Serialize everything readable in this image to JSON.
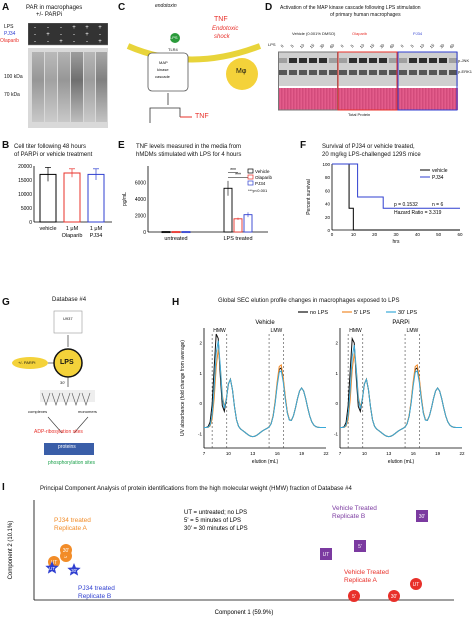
{
  "panels": {
    "A": {
      "letter": "A",
      "title_line1": "PAR in macrophages",
      "title_line2": "+/- PARPi",
      "row_lps": "LPS",
      "row_pj34": "PJ34",
      "row_olaparib": "Olaparib",
      "signs_lps": [
        "-",
        "-",
        "-",
        "+",
        "+",
        "+"
      ],
      "signs_pj34": [
        "-",
        "+",
        "-",
        "-",
        "+",
        "-"
      ],
      "signs_olap": [
        "-",
        "-",
        "+",
        "-",
        "-",
        "+"
      ],
      "mw1": "100 kDa",
      "mw2": "70 kDa"
    },
    "B": {
      "letter": "B",
      "title_line1": "Cell titer following 48 hours",
      "title_line2": "of PARPi or vehicle treatment",
      "yticks": [
        "20000",
        "15000",
        "10000",
        "5000",
        "0"
      ],
      "xlab1": "vehicle",
      "xlab2a": "1 μM",
      "xlab2b": "Olaparib",
      "xlab3a": "1 μM",
      "xlab3b": "PJ34",
      "chart_data": {
        "type": "bar",
        "categories": [
          "vehicle",
          "1 μM Olaparib",
          "1 μM PJ34"
        ],
        "values": [
          17000,
          17500,
          17000
        ],
        "errors": [
          2500,
          1500,
          2000
        ],
        "ylim": [
          0,
          20000
        ],
        "colors": [
          "#000000",
          "#e8302a",
          "#2f3fd0"
        ]
      }
    },
    "C": {
      "letter": "C",
      "endotoxin": "endotoxin",
      "lps": "LPS",
      "tlr4": "TLR4",
      "tnf_shock1": "TNF",
      "tnf_shock2": "Endotoxic",
      "tnf_shock3": "shock",
      "map1": "MAP",
      "map2": "kinase",
      "map3": "cascade",
      "mphi": "Mφ",
      "tnf": "TNF"
    },
    "D": {
      "letter": "D",
      "title": "Activation of the MAP kinase cascade following LPS stimulation",
      "subtitle": "of primary human macrophages",
      "vehicle": "Vehicle (0.001% DMSO)",
      "olaparib": "Olaparib",
      "pj34": "PJ34",
      "lps": "LPS",
      "timepoints": [
        "0",
        "5",
        "10",
        "15",
        "30",
        "60",
        "0",
        "5",
        "10",
        "15",
        "30",
        "60",
        "0",
        "5",
        "10",
        "15",
        "30",
        "60"
      ],
      "pjnk": "p-JNK",
      "perk": "p-ERK1",
      "total": "Total Protein"
    },
    "E": {
      "letter": "E",
      "title1": "TNF levels measured in the media from",
      "title2": "hMDMs stimulated with LPS for 4 hours",
      "ylabel": "pg/mL",
      "yticks": [
        "6000",
        "4000",
        "2000",
        "0"
      ],
      "legend": [
        "Vehicle",
        "Olaparib",
        "PJ34"
      ],
      "sig": "***p<0.001",
      "stars": "***",
      "xlab1": "untreated",
      "xlab2": "LPS treated",
      "chart_data": {
        "type": "bar",
        "categories": [
          "untreated",
          "LPS treated"
        ],
        "series": [
          {
            "name": "Vehicle",
            "values": [
              50,
              5300
            ],
            "errors": [
              20,
              900
            ]
          },
          {
            "name": "Olaparib",
            "values": [
              50,
              1600
            ],
            "errors": [
              20,
              150
            ]
          },
          {
            "name": "PJ34",
            "values": [
              50,
              2100
            ],
            "errors": [
              20,
              300
            ]
          }
        ],
        "ylim": [
          0,
          8000
        ],
        "colors": [
          "#000000",
          "#e8302a",
          "#2f3fd0"
        ]
      }
    },
    "F": {
      "letter": "F",
      "title1": "Survival of PJ34 or vehicle treated,",
      "title2": "20 mg/kg LPS-challenged 129S mice",
      "ylabel": "Percent survival",
      "xlabel": "hrs",
      "legend": [
        "vehicle",
        "PJ34"
      ],
      "stats1": "p = 0.1532",
      "stats2": "n = 6",
      "stats3": "Hazard Ratio = 3.319",
      "yticks": [
        "100",
        "80",
        "60",
        "40",
        "20",
        "0"
      ],
      "xticks": [
        "0",
        "10",
        "20",
        "30",
        "40",
        "50",
        "60"
      ],
      "chart_data": {
        "type": "line",
        "series": [
          {
            "name": "vehicle",
            "x": [
              0,
              8,
              8,
              10,
              10,
              60
            ],
            "y": [
              100,
              100,
              33,
              33,
              0,
              0
            ]
          },
          {
            "name": "PJ34",
            "x": [
              0,
              12,
              12,
              24,
              24,
              60
            ],
            "y": [
              100,
              100,
              50,
              50,
              33,
              33
            ]
          }
        ],
        "xlim": [
          0,
          60
        ],
        "ylim": [
          0,
          100
        ]
      }
    },
    "G": {
      "letter": "G",
      "db": "Database #4",
      "u937": "U937",
      "parpi": "+/- PARPi",
      "lps": "LPS",
      "t30": "30'",
      "complexes": "complexes",
      "monomers": "monomers",
      "adp": "ADP-ribosylation sites",
      "proteins": "proteins",
      "phospho": "phosphorylation sites"
    },
    "H": {
      "letter": "H",
      "title": "Global SEC elution profile changes in macrophages exposed to LPS",
      "legend": [
        "no LPS",
        "5' LPS",
        "30' LPS"
      ],
      "vehicle": "Vehicle",
      "parpi": "PARPi",
      "ylabel": "UV absorbance (fold change from average)",
      "xlabel": "elution (mL)",
      "hmw": "HMW",
      "lmw": "LMW",
      "xticks": [
        "7",
        "10",
        "13",
        "16",
        "19",
        "22"
      ],
      "yticks": [
        "2",
        "1",
        "0",
        "-1"
      ],
      "chart_data": {
        "type": "line",
        "series": [
          {
            "name": "no LPS",
            "color": "#111111"
          },
          {
            "name": "5' LPS",
            "color": "#f08a2a"
          },
          {
            "name": "30' LPS",
            "color": "#39a9d8"
          }
        ],
        "xlim": [
          7,
          22
        ]
      }
    },
    "I": {
      "letter": "I",
      "title": "Principal Component Analysis of protein identifications from the high molecular weight (HMW) fraction of Database #4",
      "legend1": "UT = untreated; no LPS",
      "legend2": "5' = 5 minutes of LPS",
      "legend3": "30' = 30 minutes of LPS",
      "xlabel": "Component 1 (59.9%)",
      "ylabel": "Component 2 (10.1%)",
      "pj_a1": "PJ34 treated",
      "pj_a2": "Replicate A",
      "pj_b1": "PJ34 treated",
      "pj_b2": "Replicate B",
      "veh_a1": "Vehicle Treated",
      "veh_a2": "Replicate A",
      "veh_b1": "Vehicle Treated",
      "veh_b2": "Replicate B",
      "ut": "UT",
      "m5": "5'",
      "m30": "30'"
    }
  }
}
